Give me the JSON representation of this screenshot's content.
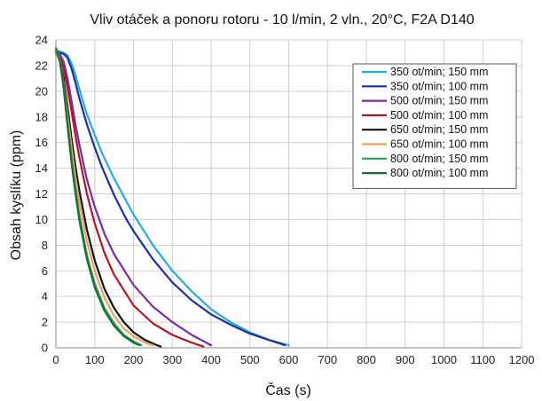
{
  "chart_data": {
    "type": "line",
    "title": "Vliv otáček a ponoru rotoru - 10 l/min, 2 vln., 20°C, F2A D140",
    "xlabel": "Čas (s)",
    "ylabel": "Obsah kyslíku (ppm)",
    "xlim": [
      0,
      1200
    ],
    "ylim": [
      0,
      24
    ],
    "xticks": [
      "0",
      "100",
      "200",
      "300",
      "400",
      "500",
      "600",
      "700",
      "800",
      "900",
      "1000",
      "1100",
      "1200"
    ],
    "yticks": [
      "0",
      "2",
      "4",
      "6",
      "8",
      "10",
      "12",
      "14",
      "16",
      "18",
      "20",
      "22",
      "24"
    ],
    "grid": true,
    "legend_position": "top-right",
    "series": [
      {
        "name": "350 ot/min; 150 mm",
        "color": "#29a9dc",
        "x": [
          0,
          10,
          20,
          30,
          40,
          50,
          60,
          80,
          100,
          120,
          150,
          180,
          200,
          250,
          300,
          350,
          400,
          450,
          500,
          550,
          600
        ],
        "y": [
          23.2,
          23.1,
          23.0,
          22.8,
          22.2,
          21.3,
          20.2,
          18.2,
          16.6,
          15.1,
          13.2,
          11.5,
          10.4,
          8.0,
          6.0,
          4.4,
          3.0,
          2.0,
          1.2,
          0.6,
          0.2
        ]
      },
      {
        "name": "350 ot/min; 100 mm",
        "color": "#1f2fa0",
        "x": [
          0,
          10,
          20,
          30,
          40,
          50,
          60,
          80,
          100,
          120,
          150,
          180,
          200,
          250,
          300,
          350,
          400,
          450,
          500,
          550,
          590
        ],
        "y": [
          23.0,
          23.0,
          22.9,
          22.6,
          21.8,
          20.7,
          19.5,
          17.4,
          15.6,
          14.0,
          11.9,
          10.1,
          9.1,
          6.9,
          5.1,
          3.7,
          2.6,
          1.8,
          1.1,
          0.6,
          0.2
        ]
      },
      {
        "name": "500 ot/min; 150 mm",
        "color": "#7a2b9e",
        "x": [
          0,
          10,
          20,
          30,
          40,
          50,
          60,
          80,
          100,
          125,
          150,
          200,
          250,
          300,
          350,
          400
        ],
        "y": [
          23.2,
          22.9,
          22.3,
          21.0,
          19.3,
          17.5,
          15.9,
          13.1,
          11.0,
          8.9,
          7.3,
          4.9,
          3.2,
          2.0,
          1.0,
          0.2
        ]
      },
      {
        "name": "500 ot/min; 100 mm",
        "color": "#b0182a",
        "x": [
          0,
          10,
          20,
          30,
          40,
          50,
          60,
          80,
          100,
          125,
          150,
          200,
          250,
          300,
          350,
          380
        ],
        "y": [
          23.1,
          22.7,
          21.8,
          20.3,
          18.5,
          16.6,
          14.9,
          12.0,
          9.7,
          7.4,
          5.7,
          3.3,
          1.9,
          1.0,
          0.4,
          0.1
        ]
      },
      {
        "name": "650 ot/min; 150 mm",
        "color": "#111111",
        "x": [
          0,
          10,
          20,
          30,
          40,
          50,
          60,
          80,
          100,
          125,
          150,
          175,
          200,
          230,
          260,
          270
        ],
        "y": [
          23.0,
          22.4,
          21.0,
          18.8,
          16.4,
          14.2,
          12.3,
          9.2,
          6.8,
          4.6,
          3.1,
          2.0,
          1.2,
          0.6,
          0.2,
          0.1
        ]
      },
      {
        "name": "650 ot/min; 100 mm",
        "color": "#f0a060",
        "x": [
          0,
          10,
          20,
          30,
          40,
          50,
          60,
          80,
          100,
          125,
          150,
          175,
          200,
          230,
          250
        ],
        "y": [
          23.1,
          22.3,
          20.6,
          18.2,
          15.7,
          13.4,
          11.4,
          8.3,
          6.0,
          3.9,
          2.5,
          1.5,
          0.9,
          0.4,
          0.2
        ]
      },
      {
        "name": "800 ot/min; 150 mm",
        "color": "#2aa05a",
        "x": [
          0,
          10,
          20,
          30,
          40,
          50,
          60,
          80,
          100,
          125,
          150,
          175,
          200,
          220
        ],
        "y": [
          23.4,
          22.6,
          20.5,
          17.7,
          14.9,
          12.5,
          10.4,
          7.2,
          5.0,
          3.1,
          1.9,
          1.0,
          0.5,
          0.2
        ]
      },
      {
        "name": "800 ot/min; 100 mm",
        "color": "#1d6b38",
        "x": [
          0,
          10,
          20,
          30,
          40,
          50,
          60,
          80,
          100,
          125,
          150,
          175,
          200,
          215
        ],
        "y": [
          23.3,
          22.4,
          20.2,
          17.3,
          14.5,
          12.1,
          10.0,
          6.9,
          4.7,
          2.9,
          1.7,
          0.9,
          0.4,
          0.2
        ]
      }
    ]
  }
}
